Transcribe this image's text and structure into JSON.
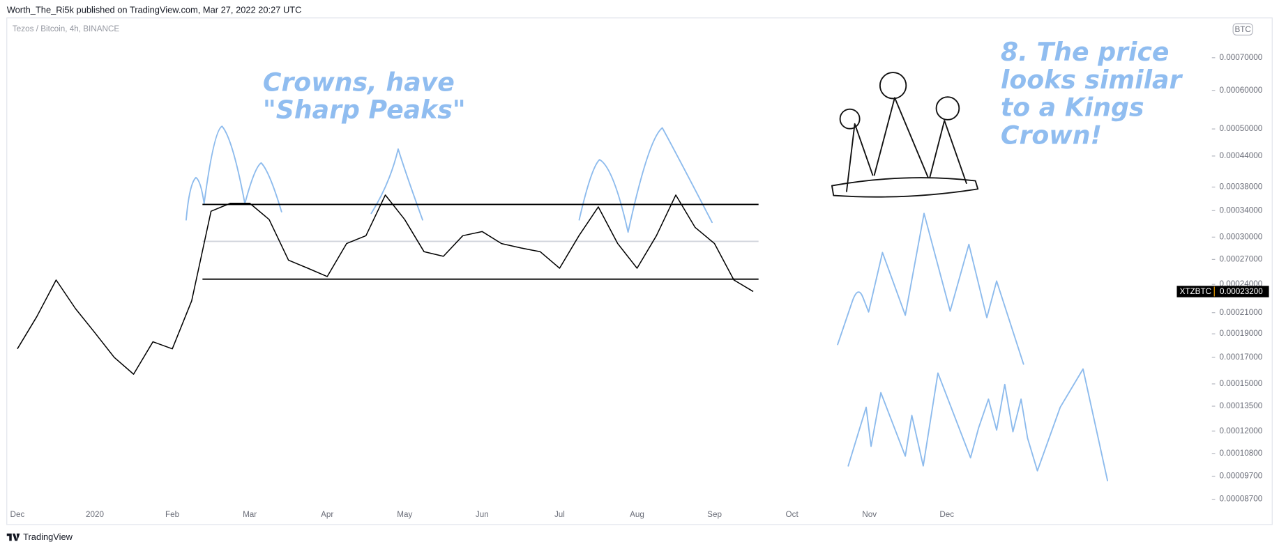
{
  "header": "Worth_The_Ri5k published on TradingView.com, Mar 27, 2022 20:27 UTC",
  "footer": "TradingView",
  "chart_data": {
    "type": "line",
    "title": "Tezos / Bitcoin, 4h, BINANCE",
    "y_unit": "BTC",
    "symbol": "XTZBTC",
    "last_price": {
      "value": 0.000232,
      "label": "0.00023200"
    },
    "log_scale": true,
    "grid": false,
    "annotations": [
      "Crowns, have",
      "\"Sharp Peaks\"",
      "8. The price",
      "looks similar",
      "to a Kings",
      "Crown!"
    ],
    "horizontal_lines": [
      0.00035,
      0.000294,
      0.000246
    ],
    "horizontal_line_colors": [
      "#000000",
      "#d1d4dc",
      "#000000"
    ],
    "categories": [
      "Dec",
      null,
      null,
      null,
      "2020",
      null,
      null,
      null,
      "Feb",
      null,
      null,
      null,
      "Mar",
      null,
      null,
      null,
      "Apr",
      null,
      null,
      null,
      "May",
      null,
      null,
      null,
      "Jun",
      null,
      null,
      null,
      "Jul",
      null,
      null,
      null,
      "Aug",
      null,
      null,
      null,
      "Sep",
      null,
      null,
      null,
      "Oct",
      null,
      null,
      null,
      "Nov",
      null,
      null,
      null,
      "Dec",
      null,
      null,
      null
    ],
    "series": [
      {
        "name": "XTZBTC",
        "color": "#000000",
        "values": [
          0.000177,
          0.000206,
          0.000245,
          0.000214,
          0.000191,
          0.00017,
          0.000157,
          0.000183,
          0.000177,
          0.000222,
          0.000339,
          0.000352,
          0.000352,
          0.000326,
          0.000269,
          0.000259,
          0.000249,
          0.000291,
          0.000302,
          0.000366,
          0.000326,
          0.00028,
          0.000274,
          0.000302,
          0.000308,
          0.000291,
          0.000285,
          0.00028,
          0.000259,
          0.000302,
          0.000346,
          0.000291,
          0.000259,
          0.000302,
          0.000366,
          0.000314,
          0.000291,
          0.000245,
          0.000232,
          null,
          null,
          null,
          null,
          null,
          null,
          null,
          null,
          null,
          null,
          null,
          null,
          null
        ]
      }
    ],
    "ylim": [
      8.4e-05,
      0.000835
    ],
    "yticks": [
      {
        "value": 0.0007,
        "label": "0.00070000"
      },
      {
        "value": 0.0006,
        "label": "0.00060000"
      },
      {
        "value": 0.0005,
        "label": "0.00050000"
      },
      {
        "value": 0.00044,
        "label": "0.00044000"
      },
      {
        "value": 0.00038,
        "label": "0.00038000"
      },
      {
        "value": 0.00034,
        "label": "0.00034000"
      },
      {
        "value": 0.0003,
        "label": "0.00030000"
      },
      {
        "value": 0.00027,
        "label": "0.00027000"
      },
      {
        "value": 0.00024,
        "label": "0.00024000"
      },
      {
        "value": 0.00021,
        "label": "0.00021000"
      },
      {
        "value": 0.00019,
        "label": "0.00019000"
      },
      {
        "value": 0.00017,
        "label": "0.00017000"
      },
      {
        "value": 0.00015,
        "label": "0.00015000"
      },
      {
        "value": 0.000135,
        "label": "0.00013500"
      },
      {
        "value": 0.00012,
        "label": "0.00012000"
      },
      {
        "value": 0.000108,
        "label": "0.00010800"
      },
      {
        "value": 9.7e-05,
        "label": "0.00009700"
      },
      {
        "value": 8.7e-05,
        "label": "0.00008700"
      }
    ]
  }
}
